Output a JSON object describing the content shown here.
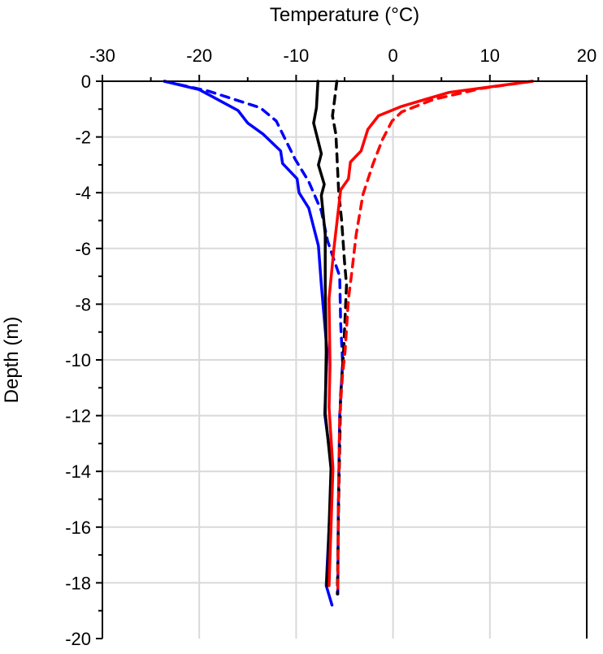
{
  "chart_data": {
    "type": "line",
    "title": "",
    "xlabel": "Temperature (°C)",
    "ylabel": "Depth (m)",
    "xaxis_position": "top",
    "xlim": [
      -30,
      20
    ],
    "ylim": [
      -20,
      0
    ],
    "xticks": [
      -30,
      -20,
      -10,
      0,
      10,
      20
    ],
    "yticks": [
      0,
      -2,
      -4,
      -6,
      -8,
      -10,
      -12,
      -14,
      -16,
      -18,
      -20
    ],
    "grid": true,
    "legend": "none",
    "series": [
      {
        "color": "#0000ff",
        "style": "solid",
        "points": [
          [
            -23.6,
            0
          ],
          [
            -20,
            -0.3
          ],
          [
            -16,
            -1.05
          ],
          [
            -15,
            -1.5
          ],
          [
            -13.4,
            -1.9
          ],
          [
            -11.6,
            -2.5
          ],
          [
            -11.4,
            -2.95
          ],
          [
            -9.9,
            -3.5
          ],
          [
            -9.7,
            -4.0
          ],
          [
            -8.7,
            -4.55
          ],
          [
            -7.7,
            -5.9
          ],
          [
            -7.4,
            -7.3
          ],
          [
            -6.8,
            -9.7
          ],
          [
            -7.05,
            -11.95
          ],
          [
            -6.3,
            -13.9
          ],
          [
            -6.9,
            -18.1
          ],
          [
            -6.3,
            -18.8
          ]
        ]
      },
      {
        "color": "#0000ff",
        "style": "dashed",
        "points": [
          [
            -23.6,
            0
          ],
          [
            -19,
            -0.36
          ],
          [
            -13.7,
            -0.95
          ],
          [
            -12.05,
            -1.43
          ],
          [
            -11.1,
            -2.1
          ],
          [
            -10.1,
            -2.8
          ],
          [
            -8.7,
            -3.6
          ],
          [
            -7.4,
            -4.65
          ],
          [
            -6.75,
            -5.73
          ],
          [
            -6.2,
            -6.3
          ],
          [
            -5.5,
            -7.0
          ],
          [
            -5.4,
            -8.7
          ],
          [
            -5.2,
            -10.1
          ],
          [
            -5.5,
            -12.0
          ],
          [
            -5.65,
            -15.4
          ],
          [
            -5.7,
            -18.4
          ]
        ]
      },
      {
        "color": "#000000",
        "style": "solid",
        "points": [
          [
            -7.75,
            0
          ],
          [
            -7.9,
            -0.95
          ],
          [
            -8.2,
            -1.5
          ],
          [
            -7.4,
            -2.6
          ],
          [
            -7.7,
            -3.0
          ],
          [
            -7.1,
            -3.7
          ],
          [
            -7.4,
            -4.1
          ],
          [
            -7.0,
            -5.5
          ],
          [
            -7.0,
            -7.3
          ],
          [
            -6.9,
            -9.7
          ],
          [
            -7.0,
            -11.9
          ],
          [
            -6.4,
            -13.9
          ],
          [
            -6.8,
            -18.1
          ]
        ]
      },
      {
        "color": "#000000",
        "style": "dashed",
        "points": [
          [
            -5.8,
            0
          ],
          [
            -6.1,
            -0.85
          ],
          [
            -6.25,
            -1.24
          ],
          [
            -5.9,
            -1.9
          ],
          [
            -5.8,
            -2.6
          ],
          [
            -5.6,
            -4.0
          ],
          [
            -5.3,
            -5.0
          ],
          [
            -5.0,
            -6.5
          ],
          [
            -4.8,
            -7.3
          ],
          [
            -5.1,
            -9.7
          ],
          [
            -5.4,
            -11.25
          ],
          [
            -5.6,
            -15.0
          ],
          [
            -5.75,
            -18.4
          ]
        ]
      },
      {
        "color": "#ff0000",
        "style": "solid",
        "points": [
          [
            14.4,
            0
          ],
          [
            5.8,
            -0.4
          ],
          [
            0.9,
            -0.9
          ],
          [
            -1.5,
            -1.24
          ],
          [
            -2.6,
            -1.73
          ],
          [
            -3.3,
            -2.5
          ],
          [
            -4.4,
            -2.9
          ],
          [
            -4.6,
            -3.5
          ],
          [
            -5.4,
            -3.9
          ],
          [
            -6.1,
            -6.0
          ],
          [
            -6.6,
            -7.8
          ],
          [
            -6.5,
            -10.2
          ],
          [
            -6.6,
            -11.7
          ],
          [
            -6.2,
            -13.9
          ],
          [
            -6.6,
            -18.1
          ]
        ]
      },
      {
        "color": "#ff0000",
        "style": "dashed",
        "points": [
          [
            14.4,
            0
          ],
          [
            9.1,
            -0.26
          ],
          [
            4.2,
            -0.65
          ],
          [
            0.9,
            -1.1
          ],
          [
            -0.1,
            -1.43
          ],
          [
            -1.1,
            -2.1
          ],
          [
            -2.1,
            -3.0
          ],
          [
            -3.1,
            -4.07
          ],
          [
            -3.8,
            -5.5
          ],
          [
            -4.3,
            -7.0
          ],
          [
            -4.6,
            -7.8
          ],
          [
            -4.95,
            -9.7
          ],
          [
            -5.2,
            -10.5
          ],
          [
            -5.5,
            -12.0
          ],
          [
            -5.65,
            -15.4
          ],
          [
            -5.7,
            -18.4
          ]
        ]
      }
    ]
  }
}
